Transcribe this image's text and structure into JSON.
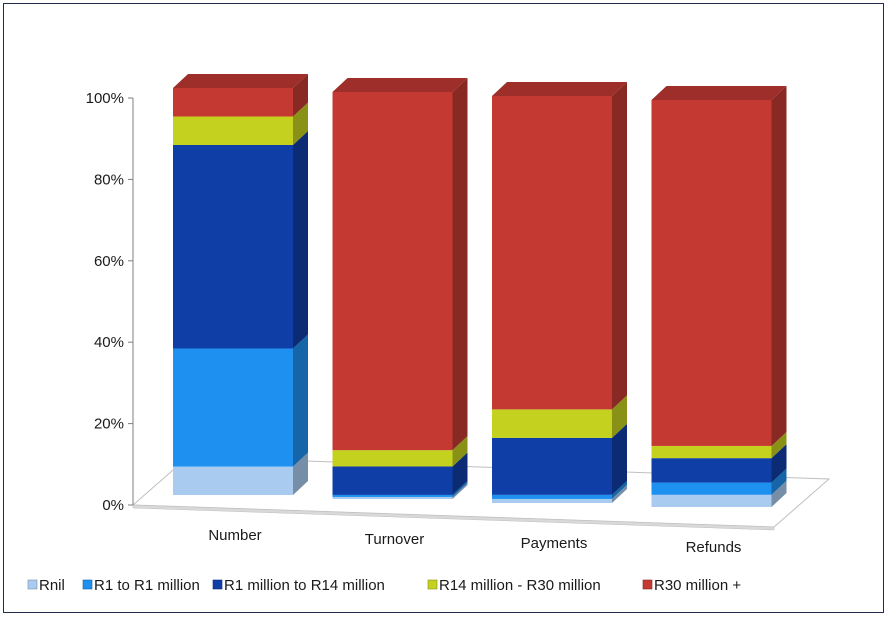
{
  "chart_data": {
    "type": "bar",
    "stacked": "percent",
    "three_d": true,
    "categories": [
      "Number",
      "Turnover",
      "Payments",
      "Refunds"
    ],
    "series": [
      {
        "name": "Rnil",
        "color": "#a9cbf0",
        "values": [
          7,
          0.5,
          1,
          3
        ]
      },
      {
        "name": "R1 to R1 million",
        "color": "#1e90f0",
        "values": [
          29,
          0.5,
          1,
          3
        ]
      },
      {
        "name": "R1 million to R14 million",
        "color": "#0f3fa6",
        "values": [
          50,
          7,
          14,
          6
        ]
      },
      {
        "name": "R14 million - R30 million",
        "color": "#c4d11f",
        "values": [
          7,
          4,
          7,
          3
        ]
      },
      {
        "name": "R30 million +",
        "color": "#c43a33",
        "values": [
          7,
          88,
          77,
          85
        ]
      }
    ],
    "yticks": [
      "0%",
      "20%",
      "40%",
      "60%",
      "80%",
      "100%"
    ],
    "ylim": [
      0,
      100
    ],
    "legend": "bottom",
    "grid": false
  }
}
